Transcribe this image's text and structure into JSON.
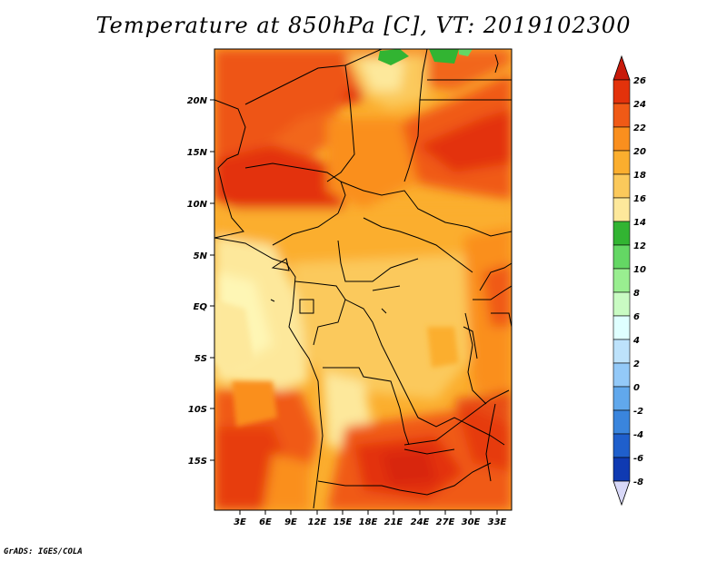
{
  "title": "Temperature at 850hPa [C], VT: 2019102300",
  "footer": "GrADS: IGES/COLA",
  "map": {
    "lat_labels": [
      "20N",
      "15N",
      "10N",
      "5N",
      "EQ",
      "5S",
      "10S",
      "15S"
    ],
    "lon_labels": [
      "3E",
      "6E",
      "9E",
      "12E",
      "15E",
      "18E",
      "21E",
      "24E",
      "27E",
      "30E",
      "33E"
    ]
  },
  "colorbar": {
    "labels": [
      "26",
      "24",
      "22",
      "20",
      "18",
      "16",
      "14",
      "12",
      "10",
      "8",
      "6",
      "4",
      "2",
      "0",
      "-2",
      "-4",
      "-6",
      "-8"
    ],
    "colors": [
      "#e3320b",
      "#f05a16",
      "#fa8f1e",
      "#fbae2e",
      "#fbc95b",
      "#fde89b",
      "#ffffc7",
      "#32b432",
      "#64d764",
      "#99ee90",
      "#c9fbc3",
      "#dfffff",
      "#bde2fb",
      "#93c9f8",
      "#61a8ec",
      "#3a85dd",
      "#1f5fcc",
      "#0f3ab2",
      "#0a1f8c"
    ],
    "top_arrow_color": "#c81a0a",
    "bottom_arrow_color": "#d8d8f8"
  }
}
